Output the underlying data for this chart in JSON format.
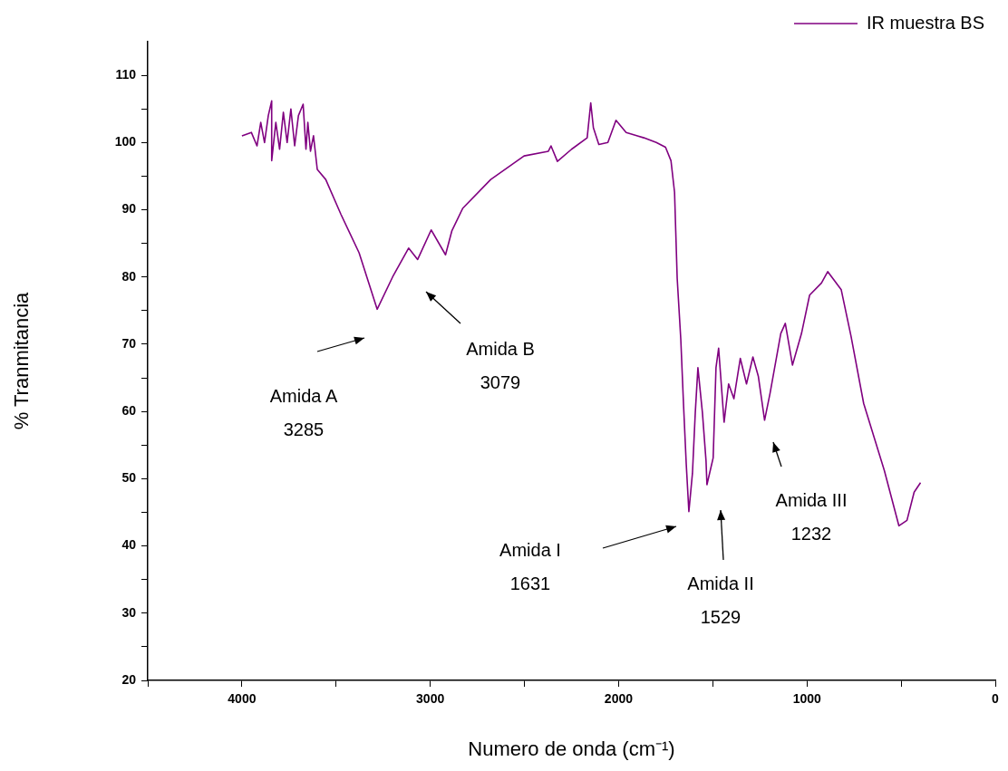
{
  "chart_data": {
    "type": "line",
    "xlabel": "Numero de onda (cm⁻¹)",
    "ylabel": "% Tranmitancia",
    "legend": "top right",
    "marker": "none",
    "line_style": "solid",
    "xlim": [
      4500,
      0
    ],
    "xticks": [
      {
        "value": 4500,
        "label": null
      },
      4000,
      {
        "value": 3500,
        "label": null
      },
      3000,
      {
        "value": 2500,
        "label": null
      },
      2000,
      {
        "value": 1500,
        "label": null
      },
      1000,
      {
        "value": 500,
        "label": null
      },
      0
    ],
    "ylim": [
      20,
      115
    ],
    "yticks": [
      20,
      {
        "value": 25,
        "label": null
      },
      30,
      {
        "value": 35,
        "label": null
      },
      40,
      {
        "value": 45,
        "label": null
      },
      50,
      {
        "value": 55,
        "label": null
      },
      60,
      {
        "value": 65,
        "label": null
      },
      70,
      {
        "value": 75,
        "label": null
      },
      80,
      {
        "value": 85,
        "label": null
      },
      90,
      {
        "value": 95,
        "label": null
      },
      100,
      {
        "value": 105,
        "label": null
      },
      110
    ],
    "series": [
      {
        "name": "IR muestra BS",
        "color": "#800080",
        "x": [
          4000,
          3950,
          3920,
          3900,
          3880,
          3860,
          3842,
          3842,
          3820,
          3800,
          3780,
          3760,
          3740,
          3720,
          3700,
          3675,
          3660,
          3650,
          3636,
          3620,
          3600,
          3555,
          3474,
          3378,
          3282,
          3200,
          3115,
          3067,
          2995,
          2919,
          2885,
          2828,
          2679,
          2502,
          2373,
          2359,
          2325,
          2250,
          2167,
          2148,
          2134,
          2105,
          2057,
          2014,
          1960,
          1900,
          1866,
          1800,
          1751,
          1722,
          1703,
          1689,
          1670,
          1655,
          1641,
          1627,
          1608,
          1593,
          1579,
          1555,
          1536,
          1531,
          1498,
          1483,
          1469,
          1440,
          1416,
          1388,
          1354,
          1321,
          1287,
          1258,
          1225,
          1196,
          1139,
          1115,
          1077,
          1029,
          986,
          923,
          890,
          818,
          766,
          699,
          589,
          512,
          469,
          431,
          397
        ],
        "values": [
          101,
          101.5,
          99.5,
          103,
          100,
          104,
          106.2,
          97.3,
          103,
          99,
          104.5,
          100,
          105,
          99.5,
          104,
          105.7,
          99,
          103,
          98.7,
          101,
          96,
          94.5,
          89.3,
          83.6,
          75.2,
          80,
          84.3,
          82.6,
          87,
          83.3,
          86.9,
          90.2,
          94.5,
          98,
          98.7,
          99.5,
          97.2,
          99,
          100.7,
          105.9,
          102.2,
          99.7,
          100,
          103.3,
          101.5,
          101,
          100.7,
          100,
          99.3,
          97.3,
          92.6,
          79.8,
          70.8,
          60.8,
          52.2,
          45.1,
          50.8,
          59.8,
          66.5,
          59.8,
          52.7,
          49.1,
          53.1,
          66.5,
          69.4,
          58.4,
          64.1,
          61.9,
          67.9,
          64.1,
          68.1,
          65.2,
          58.7,
          62.7,
          71.6,
          73.1,
          66.9,
          71.6,
          77.3,
          79.1,
          80.8,
          78.1,
          71.2,
          61.2,
          51.2,
          43,
          43.8,
          48,
          49.4
        ]
      }
    ],
    "annotations": [
      "Amida A\n3285",
      "Amida B\n3079",
      "Amida I\n1631",
      "Amida II\n1529",
      "Amida III\n1232"
    ]
  }
}
